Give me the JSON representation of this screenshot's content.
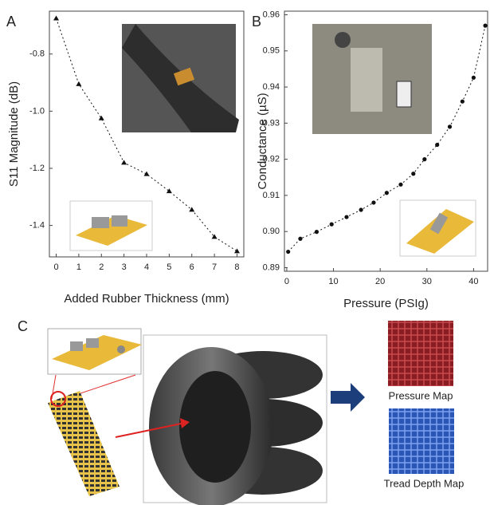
{
  "chart_data": [
    {
      "type": "line",
      "panel": "A",
      "x_label": "Added Rubber Thickness (mm)",
      "y_label": "S11 Magnitude (dB)",
      "x": [
        0,
        1,
        2,
        3,
        4,
        5,
        6,
        7,
        8
      ],
      "values": [
        -0.675,
        -0.905,
        -1.025,
        -1.18,
        -1.22,
        -1.28,
        -1.345,
        -1.44,
        -1.49
      ],
      "xlim": [
        -0.3,
        8.3
      ],
      "ylim": [
        -1.51,
        -0.65
      ],
      "xticks": [
        0,
        1,
        2,
        3,
        4,
        5,
        6,
        7,
        8
      ],
      "yticks": [
        -0.8,
        {
          "value": -1,
          "label": "-1.0"
        },
        -1.2,
        -1.4
      ],
      "marker": "triangle",
      "line_style": "dotted",
      "color": "#111111"
    },
    {
      "type": "line",
      "panel": "B",
      "x_label": "Pressure (PSIg)",
      "y_label": "Conductance (µS)",
      "x": [
        0.3,
        2.9,
        6.4,
        9.6,
        12.8,
        15.9,
        18.6,
        21.4,
        24.4,
        27.1,
        29.5,
        32.2,
        34.9,
        37.6,
        40,
        42.5
      ],
      "values": [
        0.8944,
        0.898,
        0.8999,
        0.902,
        0.904,
        0.906,
        0.908,
        0.9107,
        0.913,
        0.916,
        0.92,
        0.924,
        0.929,
        0.936,
        0.9426,
        0.957
      ],
      "xlim": [
        -0.5,
        43
      ],
      "ylim": [
        0.889,
        0.961
      ],
      "xticks": [
        0,
        10,
        20,
        30,
        40
      ],
      "yticks": [
        0.89,
        {
          "value": 0.9,
          "label": "0.90"
        },
        0.91,
        0.92,
        0.93,
        0.94,
        0.95,
        0.96
      ],
      "marker": "circle",
      "line_style": "dotted",
      "color": "#111111"
    }
  ],
  "diagram": {
    "panel": "C",
    "maps": [
      "Pressure Map",
      "Tread Depth Map"
    ]
  }
}
